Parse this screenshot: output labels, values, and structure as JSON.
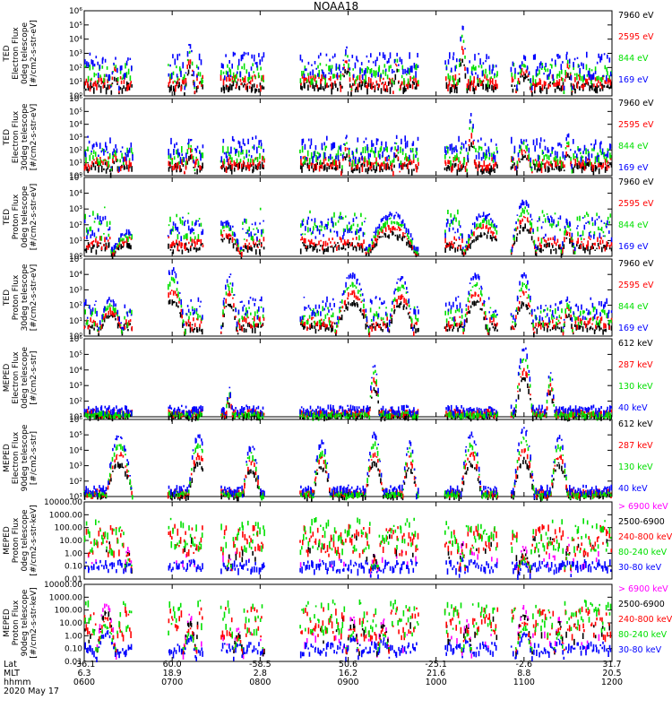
{
  "title": "NOAA18",
  "colors": {
    "black": "#000000",
    "blue": "#0000ff",
    "red": "#ff0000",
    "green": "#00e000",
    "magenta": "#ff00ff"
  },
  "chart_data": {
    "type": "scatter",
    "panels": [
      {
        "id": "p1",
        "ylabel": [
          "TED",
          "Electron Flux",
          "0deg telescope",
          "[#/cm2-s-str-eV]"
        ],
        "yscale": "log",
        "ylim": [
          1,
          1000000
        ],
        "yticks": [
          "10⁰",
          "10¹",
          "10²",
          "10³",
          "10⁴",
          "10⁵",
          "10⁶"
        ],
        "legend": [
          {
            "label": "7960 eV",
            "color": "#000000"
          },
          {
            "label": "2595 eV",
            "color": "#ff0000"
          },
          {
            "label": "844 eV",
            "color": "#00e000"
          },
          {
            "label": "169 eV",
            "color": "#0000ff"
          }
        ]
      },
      {
        "id": "p2",
        "ylabel": [
          "TED",
          "Electron Flux",
          "30deg telescope",
          "[#/cm2-s-str-eV]"
        ],
        "yscale": "log",
        "ylim": [
          1,
          1000000
        ],
        "yticks": [
          "10⁰",
          "10¹",
          "10²",
          "10³",
          "10⁴",
          "10⁵",
          "10⁶"
        ],
        "legend": [
          {
            "label": "7960 eV",
            "color": "#000000"
          },
          {
            "label": "2595 eV",
            "color": "#ff0000"
          },
          {
            "label": "844 eV",
            "color": "#00e000"
          },
          {
            "label": "169 eV",
            "color": "#0000ff"
          }
        ]
      },
      {
        "id": "p3",
        "ylabel": [
          "TED",
          "Proton Flux",
          "0deg telescope",
          "[#/cm2-s-str-eV]"
        ],
        "yscale": "log",
        "ylim": [
          1,
          100000
        ],
        "yticks": [
          "10⁰",
          "10¹",
          "10²",
          "10³",
          "10⁴",
          "10⁵"
        ],
        "legend": [
          {
            "label": "7960 eV",
            "color": "#000000"
          },
          {
            "label": "2595 eV",
            "color": "#ff0000"
          },
          {
            "label": "844 eV",
            "color": "#00e000"
          },
          {
            "label": "169 eV",
            "color": "#0000ff"
          }
        ]
      },
      {
        "id": "p4",
        "ylabel": [
          "TED",
          "Proton Flux",
          "30deg telescope",
          "[#/cm2-s-str-eV]"
        ],
        "yscale": "log",
        "ylim": [
          1,
          100000
        ],
        "yticks": [
          "10⁰",
          "10¹",
          "10²",
          "10³",
          "10⁴",
          "10⁵"
        ],
        "legend": [
          {
            "label": "7960 eV",
            "color": "#000000"
          },
          {
            "label": "2595 eV",
            "color": "#ff0000"
          },
          {
            "label": "844 eV",
            "color": "#00e000"
          },
          {
            "label": "169 eV",
            "color": "#0000ff"
          }
        ]
      },
      {
        "id": "p5",
        "ylabel": [
          "MEPED",
          "Electron Flux",
          "0deg telescope",
          "[#/cm2-s-str]"
        ],
        "yscale": "log",
        "ylim": [
          10,
          1000000
        ],
        "yticks": [
          "10¹",
          "10²",
          "10³",
          "10⁴",
          "10⁵",
          "10⁶"
        ],
        "legend": [
          {
            "label": "612 keV",
            "color": "#000000"
          },
          {
            "label": "287 keV",
            "color": "#ff0000"
          },
          {
            "label": "130 keV",
            "color": "#00e000"
          },
          {
            "label": "40 keV",
            "color": "#0000ff"
          }
        ]
      },
      {
        "id": "p6",
        "ylabel": [
          "MEPED",
          "Electron Flux",
          "90deg telescope",
          "[#/cm2-s-str]"
        ],
        "yscale": "log",
        "ylim": [
          10,
          1000000
        ],
        "yticks": [
          "10¹",
          "10²",
          "10³",
          "10⁴",
          "10⁵",
          "10⁶"
        ],
        "legend": [
          {
            "label": "612 keV",
            "color": "#000000"
          },
          {
            "label": "287 keV",
            "color": "#ff0000"
          },
          {
            "label": "130 keV",
            "color": "#00e000"
          },
          {
            "label": "40 keV",
            "color": "#0000ff"
          }
        ]
      },
      {
        "id": "p7",
        "ylabel": [
          "MEPED",
          "Proton Flux",
          "0deg telescope",
          "[#/cm2-s-str-keV]"
        ],
        "yscale": "log",
        "ylim": [
          0.01,
          10000
        ],
        "yticks": [
          "0.01",
          "0.10",
          "1.00",
          "10.00",
          "100.00",
          "1000.00",
          "10000.00"
        ],
        "legend": [
          {
            "label": "> 6900 keV",
            "color": "#ff00ff"
          },
          {
            "label": "2500-6900",
            "color": "#000000"
          },
          {
            "label": "240-800 keV",
            "color": "#ff0000"
          },
          {
            "label": "80-240 keV",
            "color": "#00e000"
          },
          {
            "label": "30-80 keV",
            "color": "#0000ff"
          }
        ]
      },
      {
        "id": "p8",
        "ylabel": [
          "MEPED",
          "Proton Flux",
          "90deg telescope",
          "[#/cm2-s-str-keV]"
        ],
        "yscale": "log",
        "ylim": [
          0.01,
          10000
        ],
        "yticks": [
          "0.01",
          "0.10",
          "1.00",
          "10.00",
          "100.00",
          "1000.00",
          "10000.00"
        ],
        "legend": [
          {
            "label": "> 6900 keV",
            "color": "#ff00ff"
          },
          {
            "label": "2500-6900",
            "color": "#000000"
          },
          {
            "label": "240-800 keV",
            "color": "#ff0000"
          },
          {
            "label": "80-240 keV",
            "color": "#00e000"
          },
          {
            "label": "30-80 keV",
            "color": "#0000ff"
          }
        ]
      }
    ],
    "x_axis": {
      "row_labels": [
        "Lat",
        "MLT",
        "hhmm"
      ],
      "ticks": [
        {
          "lat": "-36.1",
          "mlt": "6.3",
          "hhmm": "0600"
        },
        {
          "lat": "60.0",
          "mlt": "18.9",
          "hhmm": "0700"
        },
        {
          "lat": "-58.5",
          "mlt": "2.8",
          "hhmm": "0800"
        },
        {
          "lat": "50.6",
          "mlt": "16.2",
          "hhmm": "0900"
        },
        {
          "lat": "-25.1",
          "mlt": "21.6",
          "hhmm": "1000"
        },
        {
          "lat": "-2.6",
          "mlt": "8.8",
          "hhmm": "1100"
        },
        {
          "lat": "31.7",
          "mlt": "20.5",
          "hhmm": "1200"
        }
      ],
      "date": "2020 May 17"
    }
  }
}
